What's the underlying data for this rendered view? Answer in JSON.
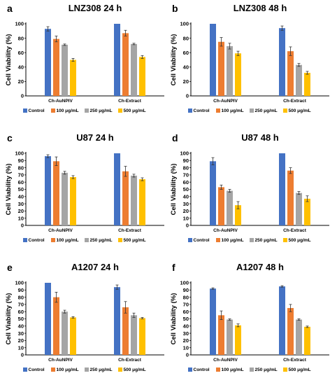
{
  "chart_data": [
    {
      "type": "bar",
      "letter": "a",
      "title": "LNZ308 24 h",
      "ylabel": "Cell Viability (%)",
      "ylim": [
        0,
        100
      ],
      "yticks": [
        0,
        20,
        40,
        60,
        80,
        100
      ],
      "categories": [
        "Ch-AuNPIV",
        "Ch-Extract"
      ],
      "series": [
        {
          "name": "Control",
          "values": [
            93,
            100
          ],
          "errors": [
            3,
            0
          ]
        },
        {
          "name": "100 μg/mL",
          "values": [
            79,
            87
          ],
          "errors": [
            4,
            4
          ]
        },
        {
          "name": "250 μg/mL",
          "values": [
            71,
            72
          ],
          "errors": [
            1,
            1
          ]
        },
        {
          "name": "500 μg/mL",
          "values": [
            50,
            54
          ],
          "errors": [
            2,
            2
          ]
        }
      ]
    },
    {
      "type": "bar",
      "letter": "b",
      "title": "LNZ308 48 h",
      "ylabel": "Cell Viability (%)",
      "ylim": [
        0,
        100
      ],
      "yticks": [
        0,
        20,
        40,
        60,
        80,
        100
      ],
      "categories": [
        "Ch-AuNPIV",
        "Ch-Extract"
      ],
      "series": [
        {
          "name": "Control",
          "values": [
            100,
            94
          ],
          "errors": [
            0,
            3
          ]
        },
        {
          "name": "100 μg/mL",
          "values": [
            75,
            62
          ],
          "errors": [
            6,
            6
          ]
        },
        {
          "name": "250 μg/mL",
          "values": [
            69,
            43
          ],
          "errors": [
            4,
            2
          ]
        },
        {
          "name": "500 μg/mL",
          "values": [
            59,
            32
          ],
          "errors": [
            3,
            2
          ]
        }
      ]
    },
    {
      "type": "bar",
      "letter": "c",
      "title": "U87 24 h",
      "ylabel": "Cell Viability (%)",
      "ylim": [
        0,
        100
      ],
      "yticks": [
        0,
        10,
        20,
        30,
        40,
        50,
        60,
        70,
        80,
        90,
        100
      ],
      "categories": [
        "Ch-AuNPIV",
        "Ch-Extract"
      ],
      "series": [
        {
          "name": "Control",
          "values": [
            96,
            100
          ],
          "errors": [
            2,
            0
          ]
        },
        {
          "name": "100 μg/mL",
          "values": [
            89,
            75
          ],
          "errors": [
            6,
            7
          ]
        },
        {
          "name": "250 μg/mL",
          "values": [
            73,
            69
          ],
          "errors": [
            2,
            2
          ]
        },
        {
          "name": "500 μg/mL",
          "values": [
            67,
            64
          ],
          "errors": [
            2,
            2
          ]
        }
      ]
    },
    {
      "type": "bar",
      "letter": "d",
      "title": "U87 48 h",
      "ylabel": "Cell Viability (%)",
      "ylim": [
        0,
        100
      ],
      "yticks": [
        0,
        10,
        20,
        30,
        40,
        50,
        60,
        70,
        80,
        90,
        100
      ],
      "categories": [
        "Ch-AuNPIV",
        "Ch-Extract"
      ],
      "series": [
        {
          "name": "Control",
          "values": [
            89,
            100
          ],
          "errors": [
            5,
            0
          ]
        },
        {
          "name": "100 μg/mL",
          "values": [
            53,
            76
          ],
          "errors": [
            3,
            4
          ]
        },
        {
          "name": "250 μg/mL",
          "values": [
            48,
            45
          ],
          "errors": [
            2,
            2
          ]
        },
        {
          "name": "500 μg/mL",
          "values": [
            28,
            37
          ],
          "errors": [
            5,
            4
          ]
        }
      ]
    },
    {
      "type": "bar",
      "letter": "e",
      "title": "A1207 24 h",
      "ylabel": "Cell Viability (%)",
      "ylim": [
        0,
        100
      ],
      "yticks": [
        0,
        10,
        20,
        30,
        40,
        50,
        60,
        70,
        80,
        90,
        100
      ],
      "categories": [
        "Ch-AuNPIV",
        "Ch-Extract"
      ],
      "series": [
        {
          "name": "Control",
          "values": [
            100,
            94
          ],
          "errors": [
            0,
            3
          ]
        },
        {
          "name": "100 μg/mL",
          "values": [
            80,
            66
          ],
          "errors": [
            7,
            8
          ]
        },
        {
          "name": "250 μg/mL",
          "values": [
            60,
            55
          ],
          "errors": [
            2,
            3
          ]
        },
        {
          "name": "500 μg/mL",
          "values": [
            52,
            51
          ],
          "errors": [
            1,
            1
          ]
        }
      ]
    },
    {
      "type": "bar",
      "letter": "f",
      "title": "A1207 48 h",
      "ylabel": "Cell Viability (%)",
      "ylim": [
        0,
        100
      ],
      "yticks": [
        0,
        10,
        20,
        30,
        40,
        50,
        60,
        70,
        80,
        90,
        100
      ],
      "categories": [
        "Ch-AuNPIV",
        "Ch-Extract"
      ],
      "series": [
        {
          "name": "Control",
          "values": [
            92,
            95
          ],
          "errors": [
            1,
            1
          ]
        },
        {
          "name": "100 μg/mL",
          "values": [
            55,
            65
          ],
          "errors": [
            6,
            5
          ]
        },
        {
          "name": "250 μg/mL",
          "values": [
            49,
            49
          ],
          "errors": [
            1,
            1
          ]
        },
        {
          "name": "500 μg/mL",
          "values": [
            41,
            39
          ],
          "errors": [
            2,
            1
          ]
        }
      ]
    }
  ],
  "colors": [
    "#4472C4",
    "#ED7D31",
    "#A5A5A5",
    "#FFC000"
  ]
}
